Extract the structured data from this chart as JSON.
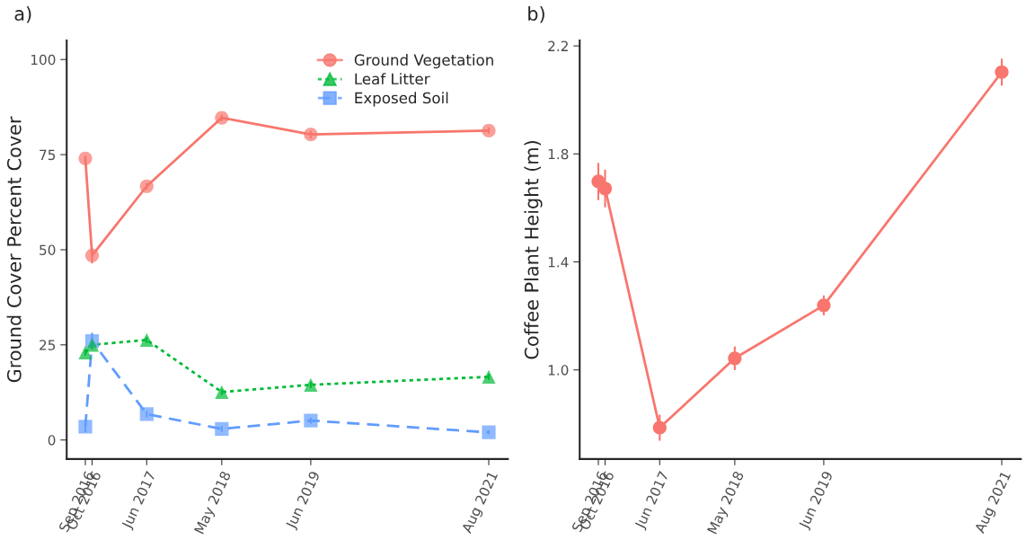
{
  "chart_data": [
    {
      "type": "line",
      "title": "a)",
      "ylabel": "Ground Cover Percent Cover",
      "x": [
        "2016-09",
        "2016-10",
        "2017-06",
        "2018-05",
        "2019-06",
        "2021-08"
      ],
      "xticks": [
        {
          "value": "2016-09",
          "label": "Sep 2016"
        },
        {
          "value": "2016-10",
          "label": "Oct 2016"
        },
        {
          "value": "2017-06",
          "label": "Jun 2017"
        },
        {
          "value": "2018-05",
          "label": "May 2018"
        },
        {
          "value": "2019-06",
          "label": "Jun 2019"
        },
        {
          "value": "2021-08",
          "label": "Aug 2021"
        }
      ],
      "xlim": [
        "2016-06-10",
        "2021-10-25"
      ],
      "ylim": [
        -5,
        105
      ],
      "yticks": [
        0,
        25,
        50,
        75,
        100
      ],
      "grid": false,
      "legend": "top right",
      "series": [
        {
          "name": "Ground Vegetation",
          "color": "#f8766d",
          "marker": "circle",
          "line_style": "solid",
          "values": [
            74.0,
            48.5,
            66.7,
            84.7,
            80.3,
            81.3
          ],
          "errors": [
            0.8,
            2.1,
            0.8,
            0.8,
            1.0,
            0.8
          ]
        },
        {
          "name": "Leaf Litter",
          "color": "#00ba38",
          "marker": "triangle",
          "line_style": "dotted",
          "values": [
            23.0,
            25.0,
            26.3,
            12.6,
            14.5,
            16.6
          ],
          "errors": [
            0.8,
            0.8,
            0.8,
            0.8,
            0.8,
            0.8
          ]
        },
        {
          "name": "Exposed Soil",
          "color": "#619cff",
          "marker": "square",
          "line_style": "dashed",
          "values": [
            3.5,
            26.0,
            6.8,
            2.9,
            5.1,
            2.0
          ],
          "errors": [
            1.5,
            2.2,
            0.8,
            0.8,
            0.8,
            0.5
          ]
        }
      ]
    },
    {
      "type": "line",
      "title": "b)",
      "ylabel": "Coffee Plant Height (m)",
      "x": [
        "2016-09",
        "2016-10",
        "2017-06",
        "2018-05",
        "2019-06",
        "2021-08"
      ],
      "xticks": [
        {
          "value": "2016-09",
          "label": "Sep 2016"
        },
        {
          "value": "2016-10",
          "label": "Oct 2016"
        },
        {
          "value": "2017-06",
          "label": "Jun 2017"
        },
        {
          "value": "2018-05",
          "label": "May 2018"
        },
        {
          "value": "2019-06",
          "label": "Jun 2019"
        },
        {
          "value": "2021-08",
          "label": "Aug 2021"
        }
      ],
      "xlim": [
        "2016-06-10",
        "2021-10-25"
      ],
      "ylim": [
        0.67,
        2.22
      ],
      "yticks": [
        {
          "value": 1.0,
          "label": "1.0"
        },
        1.4,
        1.8,
        2.2
      ],
      "grid": false,
      "series": [
        {
          "color": "#f8766d",
          "marker": "circle",
          "line_style": "solid",
          "values": [
            1.698,
            1.672,
            0.786,
            1.043,
            1.239,
            2.103
          ],
          "errors": [
            0.069,
            0.07,
            0.048,
            0.044,
            0.037,
            0.05
          ]
        }
      ]
    }
  ]
}
